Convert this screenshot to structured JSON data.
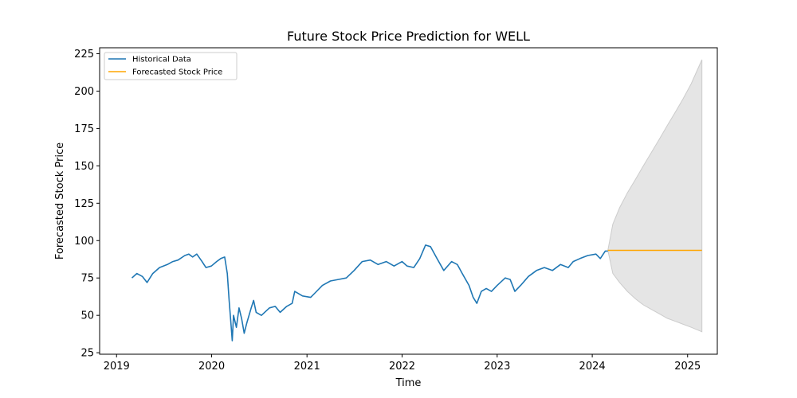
{
  "chart_data": {
    "type": "line",
    "title": "Future Stock Price Prediction for WELL",
    "xlabel": "Time",
    "ylabel": "Forecasted Stock Price",
    "xlim": [
      "2018-10-28",
      "2025-04-25"
    ],
    "ylim": [
      24,
      229
    ],
    "xticks": [
      "2019",
      "2020",
      "2021",
      "2022",
      "2023",
      "2024",
      "2025"
    ],
    "yticks": [
      25,
      50,
      75,
      100,
      125,
      150,
      175,
      200,
      225
    ],
    "grid": false,
    "legend": {
      "position": "top-left",
      "entries": [
        "Historical Data",
        "Forecasted Stock Price"
      ]
    },
    "series": [
      {
        "name": "Historical Data",
        "color": "#1f77b4",
        "points": [
          [
            "2019-03-01",
            75
          ],
          [
            "2019-03-20",
            78
          ],
          [
            "2019-04-10",
            76
          ],
          [
            "2019-04-28",
            72
          ],
          [
            "2019-05-20",
            78
          ],
          [
            "2019-06-15",
            82
          ],
          [
            "2019-07-15",
            84
          ],
          [
            "2019-08-05",
            86
          ],
          [
            "2019-08-25",
            87
          ],
          [
            "2019-09-20",
            90
          ],
          [
            "2019-10-05",
            91
          ],
          [
            "2019-10-20",
            89
          ],
          [
            "2019-11-05",
            91
          ],
          [
            "2019-11-25",
            86
          ],
          [
            "2019-12-10",
            82
          ],
          [
            "2019-12-31",
            83
          ],
          [
            "2020-01-20",
            86
          ],
          [
            "2020-02-05",
            88
          ],
          [
            "2020-02-20",
            89
          ],
          [
            "2020-03-01",
            78
          ],
          [
            "2020-03-08",
            60
          ],
          [
            "2020-03-15",
            45
          ],
          [
            "2020-03-20",
            33
          ],
          [
            "2020-03-25",
            50
          ],
          [
            "2020-04-05",
            42
          ],
          [
            "2020-04-15",
            55
          ],
          [
            "2020-04-25",
            48
          ],
          [
            "2020-05-05",
            38
          ],
          [
            "2020-05-15",
            45
          ],
          [
            "2020-06-01",
            55
          ],
          [
            "2020-06-10",
            60
          ],
          [
            "2020-06-20",
            52
          ],
          [
            "2020-07-10",
            50
          ],
          [
            "2020-08-10",
            55
          ],
          [
            "2020-09-01",
            56
          ],
          [
            "2020-09-20",
            52
          ],
          [
            "2020-10-15",
            56
          ],
          [
            "2020-11-05",
            58
          ],
          [
            "2020-11-15",
            66
          ],
          [
            "2020-12-15",
            63
          ],
          [
            "2021-01-15",
            62
          ],
          [
            "2021-02-01",
            65
          ],
          [
            "2021-03-01",
            70
          ],
          [
            "2021-04-01",
            73
          ],
          [
            "2021-05-01",
            74
          ],
          [
            "2021-06-01",
            75
          ],
          [
            "2021-07-01",
            80
          ],
          [
            "2021-08-01",
            86
          ],
          [
            "2021-09-01",
            87
          ],
          [
            "2021-10-01",
            84
          ],
          [
            "2021-11-01",
            86
          ],
          [
            "2021-12-01",
            83
          ],
          [
            "2022-01-01",
            86
          ],
          [
            "2022-01-20",
            83
          ],
          [
            "2022-02-15",
            82
          ],
          [
            "2022-03-10",
            88
          ],
          [
            "2022-04-01",
            97
          ],
          [
            "2022-04-20",
            96
          ],
          [
            "2022-05-15",
            88
          ],
          [
            "2022-06-10",
            80
          ],
          [
            "2022-07-10",
            86
          ],
          [
            "2022-08-01",
            84
          ],
          [
            "2022-08-20",
            78
          ],
          [
            "2022-09-15",
            70
          ],
          [
            "2022-10-01",
            62
          ],
          [
            "2022-10-15",
            58
          ],
          [
            "2022-11-01",
            66
          ],
          [
            "2022-11-20",
            68
          ],
          [
            "2022-12-10",
            66
          ],
          [
            "2023-01-01",
            70
          ],
          [
            "2023-02-01",
            75
          ],
          [
            "2023-02-20",
            74
          ],
          [
            "2023-03-10",
            66
          ],
          [
            "2023-04-01",
            70
          ],
          [
            "2023-05-01",
            76
          ],
          [
            "2023-06-01",
            80
          ],
          [
            "2023-07-01",
            82
          ],
          [
            "2023-08-01",
            80
          ],
          [
            "2023-09-01",
            84
          ],
          [
            "2023-10-01",
            82
          ],
          [
            "2023-10-20",
            86
          ],
          [
            "2023-11-15",
            88
          ],
          [
            "2023-12-15",
            90
          ],
          [
            "2024-01-15",
            91
          ],
          [
            "2024-02-01",
            88
          ],
          [
            "2024-02-20",
            93
          ],
          [
            "2024-03-01",
            93
          ]
        ]
      },
      {
        "name": "Forecasted Stock Price",
        "color": "#ffa500",
        "points": [
          [
            "2024-03-01",
            93.5
          ],
          [
            "2025-02-25",
            93.5
          ]
        ]
      }
    ],
    "confidence_band": {
      "color": "#cccccc",
      "points": [
        [
          "2024-03-01",
          93.5,
          93.5
        ],
        [
          "2024-03-20",
          111,
          78
        ],
        [
          "2024-04-15",
          122,
          72
        ],
        [
          "2024-05-15",
          132,
          66
        ],
        [
          "2024-06-15",
          141,
          61
        ],
        [
          "2024-07-15",
          150,
          57
        ],
        [
          "2024-08-15",
          159,
          54
        ],
        [
          "2024-09-15",
          168,
          51
        ],
        [
          "2024-10-15",
          177,
          48
        ],
        [
          "2024-11-15",
          186,
          46
        ],
        [
          "2024-12-15",
          195,
          44
        ],
        [
          "2025-01-15",
          205,
          42
        ],
        [
          "2025-02-25",
          221,
          39
        ]
      ]
    }
  }
}
